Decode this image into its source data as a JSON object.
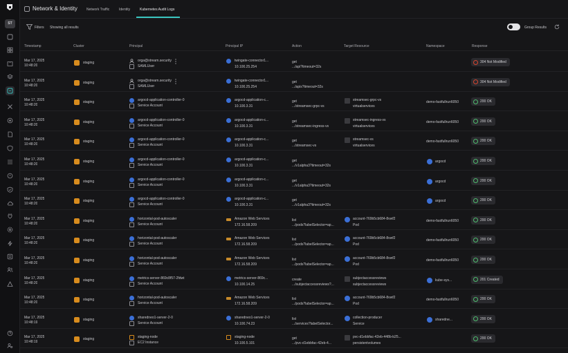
{
  "rail": {
    "user_initials": "ST",
    "icons": [
      "dashboard-icon",
      "grid-icon",
      "book-icon",
      "layers-icon",
      "network-icon",
      "tools-icon",
      "target-icon",
      "docs-icon",
      "shield-icon",
      "stack-icon",
      "alert-icon",
      "check-shield-icon",
      "cloud-icon",
      "plug-icon",
      "gear-icon",
      "lightning-icon",
      "list-icon",
      "users-icon",
      "hierarchy-icon",
      "help-icon",
      "settings-user-icon"
    ]
  },
  "header": {
    "title": "Network & Identity",
    "tabs": [
      {
        "label": "Network Traffic"
      },
      {
        "label": "Identity"
      },
      {
        "label": "Kubernetes Audit Logs"
      }
    ]
  },
  "filters": {
    "label": "Filters",
    "value": "Showing all results",
    "group_label": "Group Results"
  },
  "table": {
    "columns": [
      "Timestamp",
      "Cluster",
      "Principal",
      "Principal IP",
      "Action",
      "Target Resource",
      "Namespace",
      "Response"
    ],
    "rows": [
      {
        "date": "Mar 17, 2025",
        "time": "10:48:20",
        "cluster": "staging",
        "principal": "orga@stream.security",
        "principal_type": "SAMLUser",
        "principal_kind": "user",
        "ip_name": "twingate-connector1...",
        "ip": "10.100.25.254",
        "action": "get",
        "action_path": ".../api?timeout=32s",
        "target": "",
        "target_type": "",
        "namespace": "",
        "response": "304 Not Modified",
        "status": "nm"
      },
      {
        "date": "Mar 17, 2025",
        "time": "10:48:20",
        "cluster": "staging",
        "principal": "orga@stream.security",
        "principal_type": "SAMLUser",
        "principal_kind": "user",
        "ip_name": "twingate-connector1...",
        "ip": "10.100.25.254",
        "action": "get",
        "action_path": ".../apis?timeout=32s",
        "target": "",
        "target_type": "",
        "namespace": "",
        "response": "304 Not Modified",
        "status": "nm"
      },
      {
        "date": "Mar 17, 2025",
        "time": "10:48:20",
        "cluster": "staging",
        "principal": "argocd-application-controller-0",
        "principal_type": "Service Account",
        "principal_kind": "sa",
        "ip_name": "argocd-application-c...",
        "ip": "10.100.3.31",
        "action": "get",
        "action_path": ".../streamsec-grpc-vs",
        "target": "streamsec-grpc-vs",
        "target_type": "virtualservices",
        "namespace": "demo-fastfullrun6050",
        "response": "200 OK",
        "status": "ok"
      },
      {
        "date": "Mar 17, 2025",
        "time": "10:48:20",
        "cluster": "staging",
        "principal": "argocd-application-controller-0",
        "principal_type": "Service Account",
        "principal_kind": "sa",
        "ip_name": "argocd-application-c...",
        "ip": "10.100.3.31",
        "action": "get",
        "action_path": ".../streamsec-ingress-vs",
        "target": "streamsec-ingress-vs",
        "target_type": "virtualservices",
        "namespace": "demo-fastfullrun6050",
        "response": "200 OK",
        "status": "ok"
      },
      {
        "date": "Mar 17, 2025",
        "time": "10:48:20",
        "cluster": "staging",
        "principal": "argocd-application-controller-0",
        "principal_type": "Service Account",
        "principal_kind": "sa",
        "ip_name": "argocd-application-c...",
        "ip": "10.100.3.31",
        "action": "get",
        "action_path": ".../streamsec-vs",
        "target": "streamsec-vs",
        "target_type": "virtualservices",
        "namespace": "demo-fastfullrun6050",
        "response": "200 OK",
        "status": "ok"
      },
      {
        "date": "Mar 17, 2025",
        "time": "10:48:20",
        "cluster": "staging",
        "principal": "argocd-application-controller-0",
        "principal_type": "Service Account",
        "principal_kind": "sa",
        "ip_name": "argocd-application-c...",
        "ip": "10.100.3.31",
        "action": "get",
        "action_path": ".../v1alpha3?timeout=32s",
        "target": "",
        "target_type": "",
        "namespace": "argocd",
        "ns_icon": true,
        "response": "200 OK",
        "status": "ok"
      },
      {
        "date": "Mar 17, 2025",
        "time": "10:48:20",
        "cluster": "staging",
        "principal": "argocd-application-controller-0",
        "principal_type": "Service Account",
        "principal_kind": "sa",
        "ip_name": "argocd-application-c...",
        "ip": "10.100.3.31",
        "action": "get",
        "action_path": ".../v1alpha3?timeout=32s",
        "target": "",
        "target_type": "",
        "namespace": "argocd",
        "ns_icon": true,
        "response": "200 OK",
        "status": "ok"
      },
      {
        "date": "Mar 17, 2025",
        "time": "10:48:20",
        "cluster": "staging",
        "principal": "argocd-application-controller-0",
        "principal_type": "Service Account",
        "principal_kind": "sa",
        "ip_name": "argocd-application-c...",
        "ip": "10.100.3.31",
        "action": "get",
        "action_path": ".../v1alpha3?timeout=32s",
        "target": "",
        "target_type": "",
        "namespace": "argocd",
        "ns_icon": true,
        "response": "200 OK",
        "status": "ok"
      },
      {
        "date": "Mar 17, 2025",
        "time": "10:48:20",
        "cluster": "staging",
        "principal": "horizontal-pod-autoscaler",
        "principal_type": "Service Account",
        "principal_kind": "sa",
        "ip_name": "Amazon Web Services",
        "ip_kind": "aws",
        "ip": "172.16.58.209",
        "action": "list",
        "action_path": ".../pods?labelSelector=ap...",
        "target": "account-769b5cb684-8vwf2",
        "target_type": "Pod",
        "namespace": "demo-fastfullrun6050",
        "response": "200 OK",
        "status": "ok"
      },
      {
        "date": "Mar 17, 2025",
        "time": "10:48:20",
        "cluster": "staging",
        "principal": "horizontal-pod-autoscaler",
        "principal_type": "Service Account",
        "principal_kind": "sa",
        "ip_name": "Amazon Web Services",
        "ip_kind": "aws",
        "ip": "172.16.58.209",
        "action": "list",
        "action_path": ".../pods?labelSelector=ap...",
        "target": "account-769b5cb684-8vwf2",
        "target_type": "Pod",
        "namespace": "demo-fastfullrun6050",
        "response": "200 OK",
        "status": "ok"
      },
      {
        "date": "Mar 17, 2025",
        "time": "10:48:20",
        "cluster": "staging",
        "principal": "horizontal-pod-autoscaler",
        "principal_type": "Service Account",
        "principal_kind": "sa",
        "ip_name": "Amazon Web Services",
        "ip_kind": "aws",
        "ip": "172.16.58.209",
        "action": "list",
        "action_path": ".../pods?labelSelector=ap...",
        "target": "account-769b5cb684-8vwf2",
        "target_type": "Pod",
        "namespace": "demo-fastfullrun6050",
        "response": "200 OK",
        "status": "ok"
      },
      {
        "date": "Mar 17, 2025",
        "time": "10:48:20",
        "cluster": "staging",
        "principal": "metrics-server-869c8f57-2fdwt",
        "principal_type": "Service Account",
        "principal_kind": "sa",
        "ip_name": "metrics-server-869c...",
        "ip": "10.100.14.25",
        "action": "create",
        "action_path": ".../subjectaccessreviews?...",
        "target": "subjectaccessreviews",
        "target_type": "subjectaccessreviews",
        "namespace": "kube-sys...",
        "ns_icon": true,
        "response": "201 Created",
        "status": "ok"
      },
      {
        "date": "Mar 17, 2025",
        "time": "10:48:20",
        "cluster": "staging",
        "principal": "horizontal-pod-autoscaler",
        "principal_type": "Service Account",
        "principal_kind": "sa",
        "ip_name": "Amazon Web Services",
        "ip_kind": "aws",
        "ip": "172.16.58.209",
        "action": "list",
        "action_path": ".../pods?labelSelector=ap...",
        "target": "account-769b5cb684-8vwf2",
        "target_type": "Pod",
        "namespace": "demo-fastfullrun6050",
        "response": "200 OK",
        "status": "ok"
      },
      {
        "date": "Mar 17, 2025",
        "time": "10:48:19",
        "cluster": "staging",
        "principal": "sharedneo1-server-2-0",
        "principal_type": "Service Account",
        "principal_kind": "sa",
        "ip_name": "sharedneo1-server-2-0",
        "ip": "10.100.74.23",
        "action": "list",
        "action_path": ".../services?labelSelector...",
        "target": "collection-producer",
        "target_type": "Service",
        "namespace": "sharedne...",
        "ns_icon": true,
        "response": "200 OK",
        "status": "ok"
      },
      {
        "date": "Mar 17, 2025",
        "time": "10:48:19",
        "cluster": "staging",
        "principal": "staging-node",
        "principal_type": "EC2 Instance",
        "principal_kind": "ec2",
        "ip_name": "staging-node",
        "ip_kind": "ec2",
        "ip": "10.100.5.101",
        "action": "get",
        "action_path": ".../pvc-d1ebbfac-42eb-4...",
        "target": "pvc-d1ebbfac-42eb-448b-b25...",
        "target_type": "persistentvolumes",
        "namespace": "",
        "response": "200 OK",
        "status": "ok"
      }
    ]
  },
  "colors": {
    "accent": "#3ac6c0",
    "cluster": "#d88c1e",
    "sa_blue": "#3b6fd6",
    "ok": "#4fbd6e",
    "not_modified": "#d9452f"
  }
}
